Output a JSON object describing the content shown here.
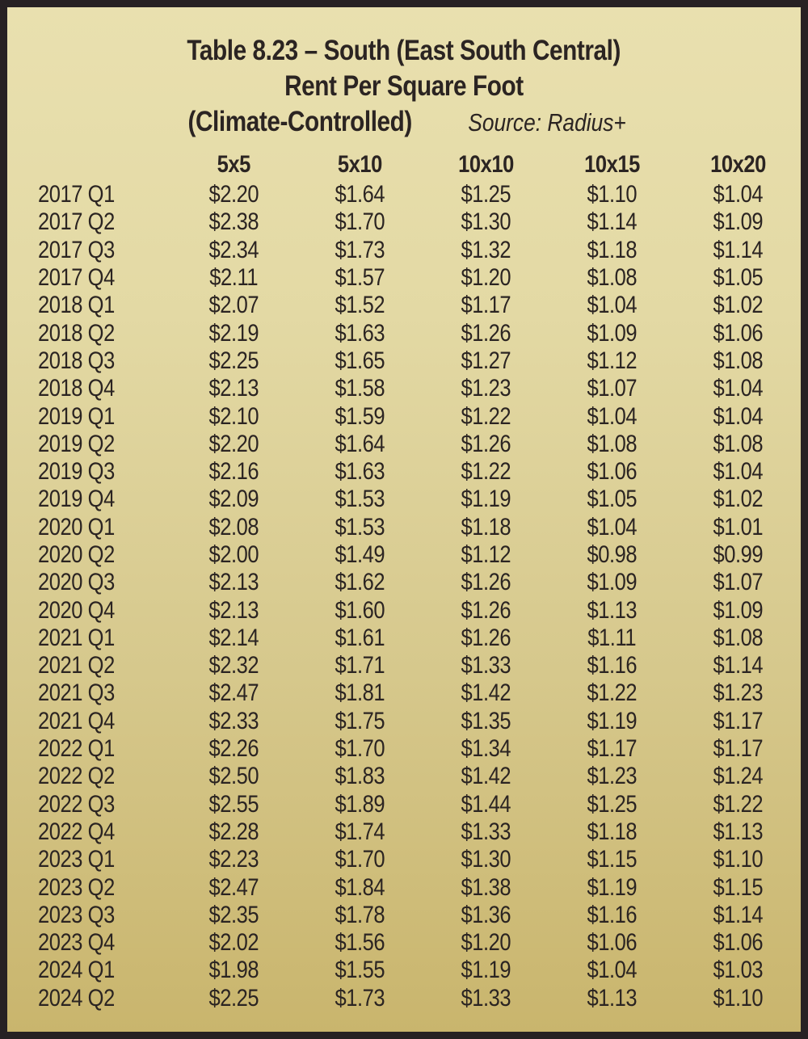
{
  "colors": {
    "background_top": "#e9e0af",
    "background_bottom": "#c9b56d",
    "border": "#272123",
    "text": "#2b2422"
  },
  "chart_data": {
    "type": "table",
    "title": "Table 8.23 – South (East South Central)",
    "subtitle": "Rent Per Square Foot",
    "subtitle2": "(Climate-Controlled)",
    "source": "Source: Radius+",
    "columns": [
      "5x5",
      "5x10",
      "10x10",
      "10x15",
      "10x20"
    ],
    "rows": [
      {
        "label": "2017 Q1",
        "values": [
          "$2.20",
          "$1.64",
          "$1.25",
          "$1.10",
          "$1.04"
        ]
      },
      {
        "label": "2017 Q2",
        "values": [
          "$2.38",
          "$1.70",
          "$1.30",
          "$1.14",
          "$1.09"
        ]
      },
      {
        "label": "2017 Q3",
        "values": [
          "$2.34",
          "$1.73",
          "$1.32",
          "$1.18",
          "$1.14"
        ]
      },
      {
        "label": "2017 Q4",
        "values": [
          "$2.11",
          "$1.57",
          "$1.20",
          "$1.08",
          "$1.05"
        ]
      },
      {
        "label": "2018 Q1",
        "values": [
          "$2.07",
          "$1.52",
          "$1.17",
          "$1.04",
          "$1.02"
        ]
      },
      {
        "label": "2018 Q2",
        "values": [
          "$2.19",
          "$1.63",
          "$1.26",
          "$1.09",
          "$1.06"
        ]
      },
      {
        "label": "2018 Q3",
        "values": [
          "$2.25",
          "$1.65",
          "$1.27",
          "$1.12",
          "$1.08"
        ]
      },
      {
        "label": "2018 Q4",
        "values": [
          "$2.13",
          "$1.58",
          "$1.23",
          "$1.07",
          "$1.04"
        ]
      },
      {
        "label": "2019 Q1",
        "values": [
          "$2.10",
          "$1.59",
          "$1.22",
          "$1.04",
          "$1.04"
        ]
      },
      {
        "label": "2019 Q2",
        "values": [
          "$2.20",
          "$1.64",
          "$1.26",
          "$1.08",
          "$1.08"
        ]
      },
      {
        "label": "2019 Q3",
        "values": [
          "$2.16",
          "$1.63",
          "$1.22",
          "$1.06",
          "$1.04"
        ]
      },
      {
        "label": "2019 Q4",
        "values": [
          "$2.09",
          "$1.53",
          "$1.19",
          "$1.05",
          "$1.02"
        ]
      },
      {
        "label": "2020 Q1",
        "values": [
          "$2.08",
          "$1.53",
          "$1.18",
          "$1.04",
          "$1.01"
        ]
      },
      {
        "label": "2020 Q2",
        "values": [
          "$2.00",
          "$1.49",
          "$1.12",
          "$0.98",
          "$0.99"
        ]
      },
      {
        "label": "2020 Q3",
        "values": [
          "$2.13",
          "$1.62",
          "$1.26",
          "$1.09",
          "$1.07"
        ]
      },
      {
        "label": "2020 Q4",
        "values": [
          "$2.13",
          "$1.60",
          "$1.26",
          "$1.13",
          "$1.09"
        ]
      },
      {
        "label": "2021 Q1",
        "values": [
          "$2.14",
          "$1.61",
          "$1.26",
          "$1.11",
          "$1.08"
        ]
      },
      {
        "label": "2021 Q2",
        "values": [
          "$2.32",
          "$1.71",
          "$1.33",
          "$1.16",
          "$1.14"
        ]
      },
      {
        "label": "2021 Q3",
        "values": [
          "$2.47",
          "$1.81",
          "$1.42",
          "$1.22",
          "$1.23"
        ]
      },
      {
        "label": "2021 Q4",
        "values": [
          "$2.33",
          "$1.75",
          "$1.35",
          "$1.19",
          "$1.17"
        ]
      },
      {
        "label": "2022 Q1",
        "values": [
          "$2.26",
          "$1.70",
          "$1.34",
          "$1.17",
          "$1.17"
        ]
      },
      {
        "label": "2022 Q2",
        "values": [
          "$2.50",
          "$1.83",
          "$1.42",
          "$1.23",
          "$1.24"
        ]
      },
      {
        "label": "2022 Q3",
        "values": [
          "$2.55",
          "$1.89",
          "$1.44",
          "$1.25",
          "$1.22"
        ]
      },
      {
        "label": "2022 Q4",
        "values": [
          "$2.28",
          "$1.74",
          "$1.33",
          "$1.18",
          "$1.13"
        ]
      },
      {
        "label": "2023 Q1",
        "values": [
          "$2.23",
          "$1.70",
          "$1.30",
          "$1.15",
          "$1.10"
        ]
      },
      {
        "label": "2023 Q2",
        "values": [
          "$2.47",
          "$1.84",
          "$1.38",
          "$1.19",
          "$1.15"
        ]
      },
      {
        "label": "2023 Q3",
        "values": [
          "$2.35",
          "$1.78",
          "$1.36",
          "$1.16",
          "$1.14"
        ]
      },
      {
        "label": "2023 Q4",
        "values": [
          "$2.02",
          "$1.56",
          "$1.20",
          "$1.06",
          "$1.06"
        ]
      },
      {
        "label": "2024 Q1",
        "values": [
          "$1.98",
          "$1.55",
          "$1.19",
          "$1.04",
          "$1.03"
        ]
      },
      {
        "label": "2024 Q2",
        "values": [
          "$2.25",
          "$1.73",
          "$1.33",
          "$1.13",
          "$1.10"
        ]
      }
    ]
  }
}
